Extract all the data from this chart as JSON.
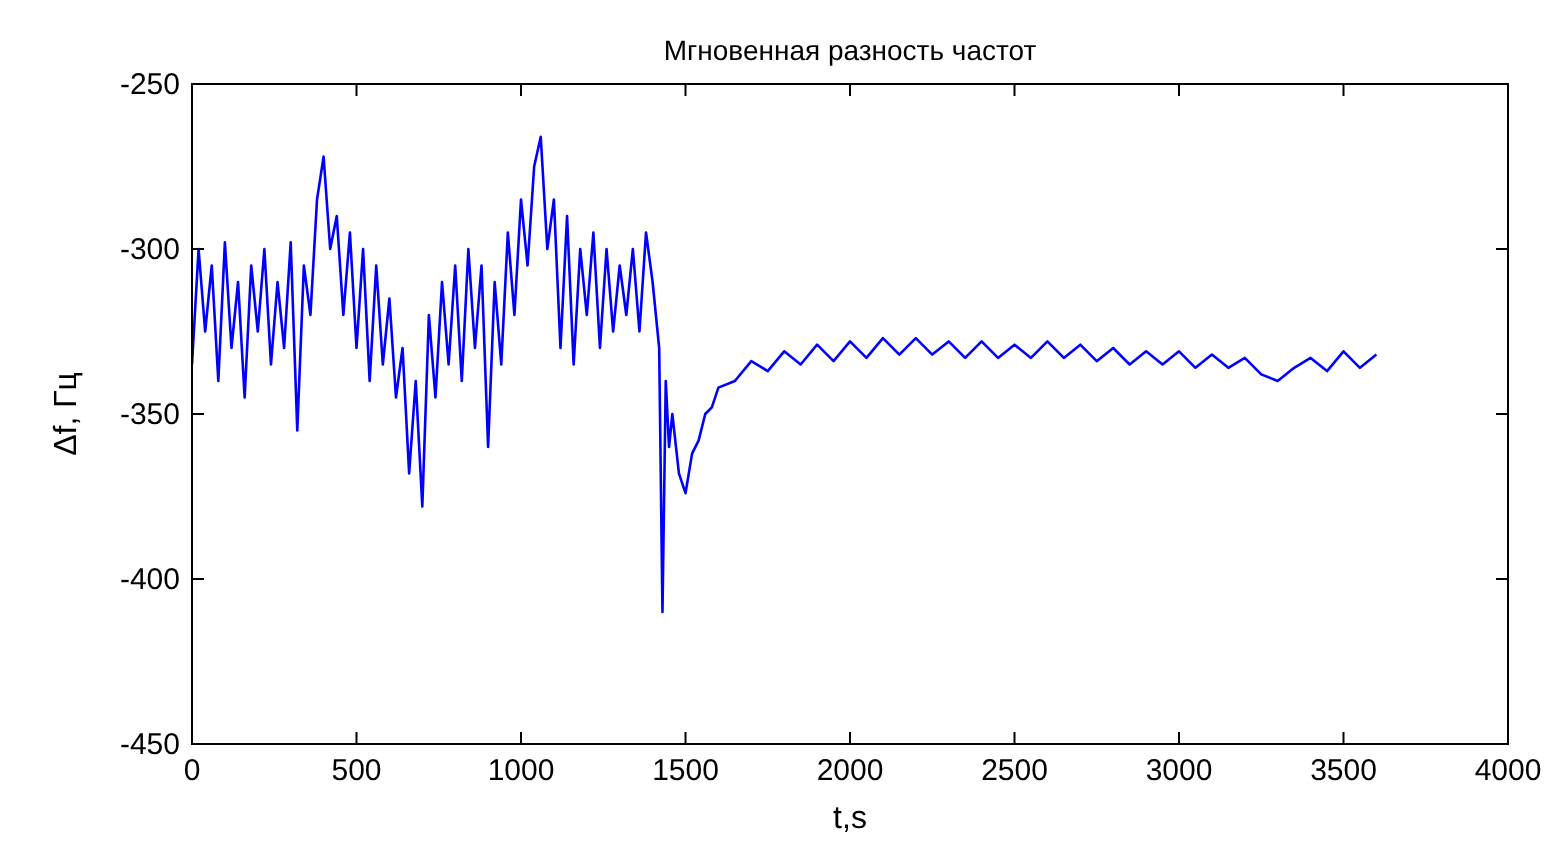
{
  "chart_data": {
    "type": "line",
    "title": "Мгновенная разность частот",
    "xlabel": "t,s",
    "ylabel": "Δf, Гц",
    "x": [
      0,
      20,
      40,
      60,
      80,
      100,
      120,
      140,
      160,
      180,
      200,
      220,
      240,
      260,
      280,
      300,
      320,
      340,
      360,
      380,
      400,
      420,
      440,
      460,
      480,
      500,
      520,
      540,
      560,
      580,
      600,
      620,
      640,
      660,
      680,
      700,
      720,
      740,
      760,
      780,
      800,
      820,
      840,
      860,
      880,
      900,
      920,
      940,
      960,
      980,
      1000,
      1020,
      1040,
      1060,
      1080,
      1100,
      1120,
      1140,
      1160,
      1180,
      1200,
      1220,
      1240,
      1260,
      1280,
      1300,
      1320,
      1340,
      1360,
      1380,
      1400,
      1420,
      1430,
      1440,
      1450,
      1460,
      1480,
      1500,
      1520,
      1540,
      1560,
      1580,
      1600,
      1650,
      1700,
      1750,
      1800,
      1850,
      1900,
      1950,
      2000,
      2050,
      2100,
      2150,
      2200,
      2250,
      2300,
      2350,
      2400,
      2450,
      2500,
      2550,
      2600,
      2650,
      2700,
      2750,
      2800,
      2850,
      2900,
      2950,
      3000,
      3050,
      3100,
      3150,
      3200,
      3250,
      3300,
      3350,
      3400,
      3450,
      3500,
      3550,
      3600
    ],
    "series": [
      {
        "color": "#0000ff",
        "values": [
          -335,
          -300,
          -325,
          -305,
          -340,
          -298,
          -330,
          -310,
          -345,
          -305,
          -325,
          -300,
          -335,
          -310,
          -330,
          -298,
          -355,
          -305,
          -320,
          -285,
          -272,
          -300,
          -290,
          -320,
          -295,
          -330,
          -300,
          -340,
          -305,
          -335,
          -315,
          -345,
          -330,
          -368,
          -340,
          -378,
          -320,
          -345,
          -310,
          -335,
          -305,
          -340,
          -300,
          -330,
          -305,
          -360,
          -310,
          -335,
          -295,
          -320,
          -285,
          -305,
          -275,
          -266,
          -300,
          -285,
          -330,
          -290,
          -335,
          -300,
          -320,
          -295,
          -330,
          -300,
          -325,
          -305,
          -320,
          -300,
          -325,
          -295,
          -310,
          -330,
          -410,
          -340,
          -360,
          -350,
          -368,
          -374,
          -362,
          -358,
          -350,
          -348,
          -342,
          -340,
          -334,
          -337,
          -331,
          -335,
          -329,
          -334,
          -328,
          -333,
          -327,
          -332,
          -327,
          -332,
          -328,
          -333,
          -328,
          -333,
          -329,
          -333,
          -328,
          -333,
          -329,
          -334,
          -330,
          -335,
          -331,
          -335,
          -331,
          -336,
          -332,
          -336,
          -333,
          -338,
          -340,
          -336,
          -333,
          -337,
          -331,
          -336,
          -332
        ]
      }
    ],
    "xlim": [
      0,
      4000
    ],
    "xticks": [
      0,
      500,
      1000,
      1500,
      2000,
      2500,
      3000,
      3500,
      4000
    ],
    "ylim": [
      -450,
      -250
    ],
    "yticks": [
      -450,
      -400,
      -350,
      -300,
      -250
    ],
    "grid": false,
    "marker": "none",
    "line_style": "solid"
  }
}
